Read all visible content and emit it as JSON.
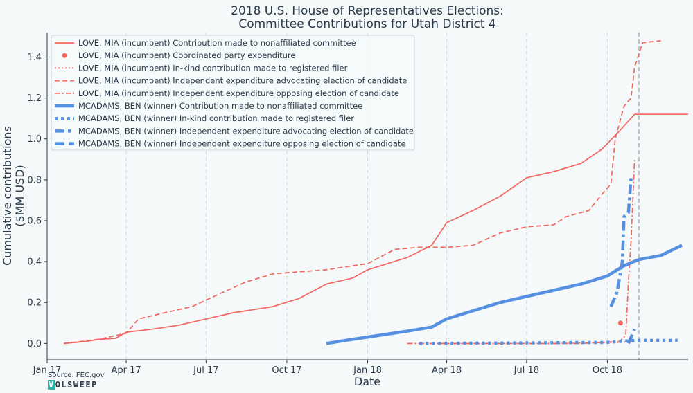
{
  "chart_data": {
    "type": "line",
    "title_line1": "2018 U.S. House of Representatives Elections:",
    "title_line2": "Committee Contributions for Utah District 4",
    "xlabel": "Date",
    "ylabel_line1": "Cumulative contributions",
    "ylabel_line2": "($MM USD)",
    "xlim": [
      "2017-01-01",
      "2019-01-01"
    ],
    "ylim": [
      -0.08,
      1.52
    ],
    "x_ticks": [
      {
        "date": "2017-01-01",
        "label": "Jan 17"
      },
      {
        "date": "2017-04-01",
        "label": "Apr 17"
      },
      {
        "date": "2017-07-01",
        "label": "Jul 17"
      },
      {
        "date": "2017-10-01",
        "label": "Oct 17"
      },
      {
        "date": "2018-01-01",
        "label": "Jan 18"
      },
      {
        "date": "2018-04-01",
        "label": "Apr 18"
      },
      {
        "date": "2018-07-01",
        "label": "Jul 18"
      },
      {
        "date": "2018-10-01",
        "label": "Oct 18"
      }
    ],
    "y_ticks": [
      {
        "value": 0.0,
        "label": "0.0"
      },
      {
        "value": 0.2,
        "label": "0.2"
      },
      {
        "value": 0.4,
        "label": "0.4"
      },
      {
        "value": 0.6,
        "label": "0.6"
      },
      {
        "value": 0.8,
        "label": "0.8"
      },
      {
        "value": 1.0,
        "label": "1.0"
      },
      {
        "value": 1.2,
        "label": "1.2"
      },
      {
        "value": 1.4,
        "label": "1.4"
      }
    ],
    "grid": "vertical-dashed",
    "reference_line_date": "2018-11-06",
    "legend_position": "top-left",
    "colors": {
      "love": "#f2665e",
      "mcadams": "#5591e0"
    },
    "series": [
      {
        "name": "LOVE, MIA (incumbent) Contribution made to nonaffiliated committee",
        "candidate": "love",
        "style": "solid",
        "kind": "line",
        "points": [
          [
            "2017-01-20",
            0.0
          ],
          [
            "2017-02-15",
            0.01
          ],
          [
            "2017-03-01",
            0.02
          ],
          [
            "2017-03-20",
            0.025
          ],
          [
            "2017-04-01",
            0.055
          ],
          [
            "2017-05-01",
            0.07
          ],
          [
            "2017-06-01",
            0.09
          ],
          [
            "2017-07-01",
            0.12
          ],
          [
            "2017-08-01",
            0.15
          ],
          [
            "2017-09-15",
            0.18
          ],
          [
            "2017-10-15",
            0.22
          ],
          [
            "2017-11-15",
            0.29
          ],
          [
            "2017-12-15",
            0.32
          ],
          [
            "2018-01-01",
            0.36
          ],
          [
            "2018-02-15",
            0.42
          ],
          [
            "2018-03-15",
            0.48
          ],
          [
            "2018-04-01",
            0.59
          ],
          [
            "2018-05-01",
            0.65
          ],
          [
            "2018-06-01",
            0.72
          ],
          [
            "2018-07-01",
            0.81
          ],
          [
            "2018-08-01",
            0.84
          ],
          [
            "2018-09-01",
            0.88
          ],
          [
            "2018-09-25",
            0.95
          ],
          [
            "2018-10-15",
            1.04
          ],
          [
            "2018-11-01",
            1.12
          ],
          [
            "2018-11-20",
            1.12
          ],
          [
            "2019-01-01",
            1.12
          ]
        ]
      },
      {
        "name": "LOVE, MIA (incumbent) Coordinated party expenditure",
        "candidate": "love",
        "style": "dot-marker",
        "kind": "scatter",
        "points": [
          [
            "2018-10-16",
            0.1
          ]
        ]
      },
      {
        "name": "LOVE, MIA (incumbent) In-kind contribution made to registered filer",
        "candidate": "love",
        "style": "dotted",
        "kind": "line",
        "points": [
          [
            "2018-03-01",
            0.0
          ],
          [
            "2018-08-01",
            0.0
          ],
          [
            "2018-10-15",
            0.005
          ],
          [
            "2018-11-01",
            0.01
          ]
        ]
      },
      {
        "name": "LOVE, MIA (incumbent) Independent expenditure advocating election of candidate",
        "candidate": "love",
        "style": "dashed",
        "kind": "line",
        "points": [
          [
            "2017-01-20",
            0.0
          ],
          [
            "2017-03-01",
            0.02
          ],
          [
            "2017-04-01",
            0.05
          ],
          [
            "2017-04-15",
            0.12
          ],
          [
            "2017-05-15",
            0.15
          ],
          [
            "2017-06-15",
            0.18
          ],
          [
            "2017-07-15",
            0.24
          ],
          [
            "2017-08-15",
            0.3
          ],
          [
            "2017-09-15",
            0.34
          ],
          [
            "2017-10-15",
            0.35
          ],
          [
            "2017-11-15",
            0.36
          ],
          [
            "2017-12-15",
            0.38
          ],
          [
            "2018-01-01",
            0.39
          ],
          [
            "2018-02-01",
            0.46
          ],
          [
            "2018-03-01",
            0.47
          ],
          [
            "2018-04-01",
            0.47
          ],
          [
            "2018-05-01",
            0.48
          ],
          [
            "2018-06-01",
            0.54
          ],
          [
            "2018-07-01",
            0.57
          ],
          [
            "2018-08-01",
            0.58
          ],
          [
            "2018-08-15",
            0.62
          ],
          [
            "2018-09-10",
            0.65
          ],
          [
            "2018-09-25",
            0.73
          ],
          [
            "2018-10-05",
            0.78
          ],
          [
            "2018-10-10",
            1.0
          ],
          [
            "2018-10-20",
            1.16
          ],
          [
            "2018-10-28",
            1.2
          ],
          [
            "2018-11-01",
            1.35
          ],
          [
            "2018-11-10",
            1.47
          ],
          [
            "2018-12-01",
            1.48
          ]
        ]
      },
      {
        "name": "LOVE, MIA (incumbent) Independent expenditure opposing election of candidate",
        "candidate": "love",
        "style": "dashdot",
        "kind": "line",
        "points": [
          [
            "2018-02-15",
            0.0
          ],
          [
            "2018-09-01",
            0.0
          ],
          [
            "2018-10-15",
            0.01
          ],
          [
            "2018-10-22",
            0.04
          ],
          [
            "2018-10-25",
            0.3
          ],
          [
            "2018-10-28",
            0.5
          ],
          [
            "2018-11-01",
            0.9
          ]
        ]
      },
      {
        "name": "MCADAMS, BEN (winner) Contribution made to nonaffiliated committee",
        "candidate": "mcadams",
        "style": "solid",
        "kind": "line",
        "points": [
          [
            "2017-11-15",
            0.0
          ],
          [
            "2017-12-15",
            0.02
          ],
          [
            "2018-01-15",
            0.04
          ],
          [
            "2018-02-15",
            0.06
          ],
          [
            "2018-03-15",
            0.08
          ],
          [
            "2018-04-01",
            0.12
          ],
          [
            "2018-05-01",
            0.16
          ],
          [
            "2018-06-01",
            0.2
          ],
          [
            "2018-07-01",
            0.23
          ],
          [
            "2018-08-01",
            0.26
          ],
          [
            "2018-09-01",
            0.29
          ],
          [
            "2018-10-01",
            0.33
          ],
          [
            "2018-10-20",
            0.38
          ],
          [
            "2018-11-06",
            0.41
          ],
          [
            "2018-12-01",
            0.43
          ],
          [
            "2018-12-25",
            0.48
          ]
        ]
      },
      {
        "name": "MCADAMS, BEN (winner) In-kind contribution made to registered filer",
        "candidate": "mcadams",
        "style": "dotted",
        "kind": "line",
        "points": [
          [
            "2018-03-01",
            0.0
          ],
          [
            "2018-10-01",
            0.005
          ],
          [
            "2018-11-01",
            0.015
          ],
          [
            "2018-12-20",
            0.015
          ]
        ]
      },
      {
        "name": "MCADAMS, BEN (winner) Independent expenditure advocating election of candidate",
        "candidate": "mcadams",
        "style": "dashdot",
        "kind": "line",
        "points": [
          [
            "2018-10-05",
            0.18
          ],
          [
            "2018-10-12",
            0.25
          ],
          [
            "2018-10-18",
            0.4
          ],
          [
            "2018-10-20",
            0.62
          ],
          [
            "2018-10-25",
            0.64
          ],
          [
            "2018-10-28",
            0.81
          ]
        ]
      },
      {
        "name": "MCADAMS, BEN (winner) Independent expenditure opposing election of candidate",
        "candidate": "mcadams",
        "style": "dashed",
        "kind": "line",
        "points": [
          [
            "2018-10-25",
            0.0
          ],
          [
            "2018-11-01",
            0.07
          ]
        ]
      }
    ]
  },
  "footer": {
    "source": "Source: FEC.gov",
    "logo_first": "V",
    "logo_rest": "OLSWEEP"
  }
}
